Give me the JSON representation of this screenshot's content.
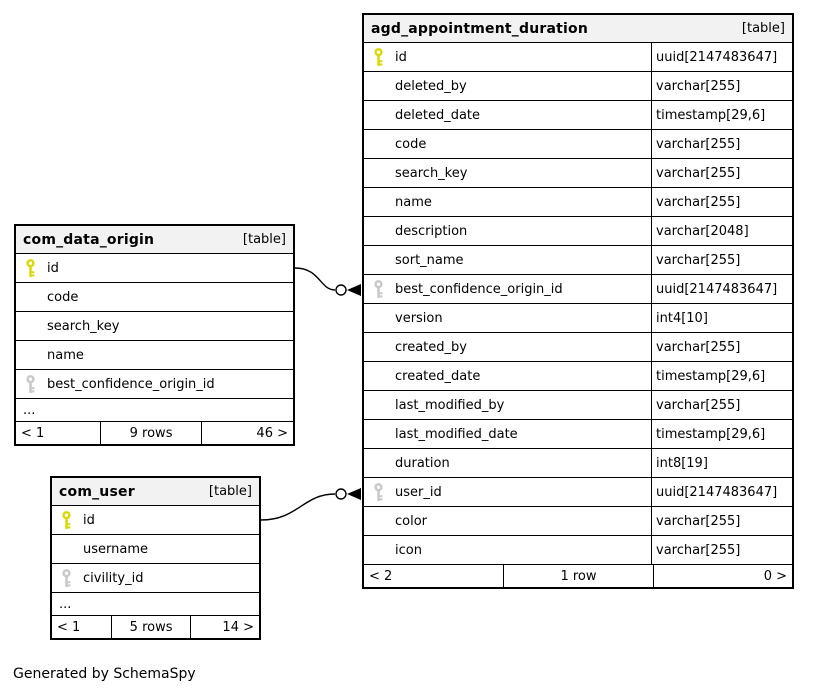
{
  "diagram": {
    "generator_note": "Generated by SchemaSpy",
    "ellipsis_label": "..."
  },
  "colors": {
    "primary_key": "#d8d800",
    "foreign_key": "#c8c8c8",
    "header_bg": "#f2f2f2",
    "border": "#000000",
    "background": "#ffffff"
  },
  "tables": [
    {
      "name": "agd_appointment_duration",
      "badge": "[table]",
      "truncated": false,
      "columns": [
        {
          "name": "id",
          "type": "uuid[2147483647]",
          "key": "pk"
        },
        {
          "name": "deleted_by",
          "type": "varchar[255]",
          "key": ""
        },
        {
          "name": "deleted_date",
          "type": "timestamp[29,6]",
          "key": ""
        },
        {
          "name": "code",
          "type": "varchar[255]",
          "key": ""
        },
        {
          "name": "search_key",
          "type": "varchar[255]",
          "key": ""
        },
        {
          "name": "name",
          "type": "varchar[255]",
          "key": ""
        },
        {
          "name": "description",
          "type": "varchar[2048]",
          "key": ""
        },
        {
          "name": "sort_name",
          "type": "varchar[255]",
          "key": ""
        },
        {
          "name": "best_confidence_origin_id",
          "type": "uuid[2147483647]",
          "key": "fk"
        },
        {
          "name": "version",
          "type": "int4[10]",
          "key": ""
        },
        {
          "name": "created_by",
          "type": "varchar[255]",
          "key": ""
        },
        {
          "name": "created_date",
          "type": "timestamp[29,6]",
          "key": ""
        },
        {
          "name": "last_modified_by",
          "type": "varchar[255]",
          "key": ""
        },
        {
          "name": "last_modified_date",
          "type": "timestamp[29,6]",
          "key": ""
        },
        {
          "name": "duration",
          "type": "int8[19]",
          "key": ""
        },
        {
          "name": "user_id",
          "type": "uuid[2147483647]",
          "key": "fk"
        },
        {
          "name": "color",
          "type": "varchar[255]",
          "key": ""
        },
        {
          "name": "icon",
          "type": "varchar[255]",
          "key": ""
        }
      ],
      "footer": {
        "left": "< 2",
        "center": "1 row",
        "right": "0 >"
      }
    },
    {
      "name": "com_data_origin",
      "badge": "[table]",
      "truncated": true,
      "columns": [
        {
          "name": "id",
          "type": "",
          "key": "pk"
        },
        {
          "name": "code",
          "type": "",
          "key": ""
        },
        {
          "name": "search_key",
          "type": "",
          "key": ""
        },
        {
          "name": "name",
          "type": "",
          "key": ""
        },
        {
          "name": "best_confidence_origin_id",
          "type": "",
          "key": "fk"
        }
      ],
      "footer": {
        "left": "< 1",
        "center": "9 rows",
        "right": "46 >"
      }
    },
    {
      "name": "com_user",
      "badge": "[table]",
      "truncated": true,
      "columns": [
        {
          "name": "id",
          "type": "",
          "key": "pk"
        },
        {
          "name": "username",
          "type": "",
          "key": ""
        },
        {
          "name": "civility_id",
          "type": "",
          "key": "fk"
        }
      ],
      "footer": {
        "left": "< 1",
        "center": "5 rows",
        "right": "14 >"
      }
    }
  ],
  "relationships": [
    {
      "from_table": "com_data_origin",
      "from_column": "id",
      "to_table": "agd_appointment_duration",
      "to_column": "best_confidence_origin_id"
    },
    {
      "from_table": "com_user",
      "from_column": "id",
      "to_table": "agd_appointment_duration",
      "to_column": "user_id"
    }
  ]
}
